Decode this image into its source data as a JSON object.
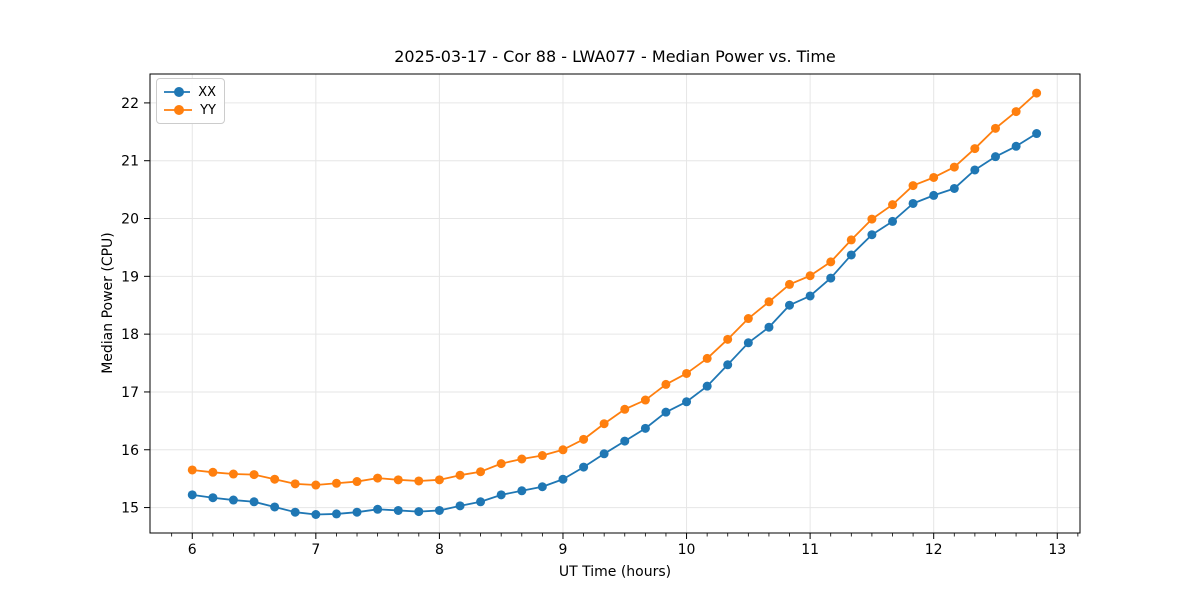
{
  "chart_data": {
    "type": "line",
    "title": "2025-03-17 - Cor 88 - LWA077 - Median Power vs. Time",
    "xlabel": "UT Time (hours)",
    "ylabel": "Median Power (CPU)",
    "xlim": [
      5.658,
      13.184
    ],
    "ylim": [
      14.56,
      22.5
    ],
    "xticks": [
      6,
      7,
      8,
      9,
      10,
      11,
      12,
      13
    ],
    "yticks": [
      15,
      16,
      17,
      18,
      19,
      20,
      21,
      22
    ],
    "minor_xtick_interval": 0.1667,
    "grid": true,
    "grid_color": "#e6e6e6",
    "legend_position": "upper-left",
    "x": [
      6.0,
      6.167,
      6.333,
      6.5,
      6.667,
      6.833,
      7.0,
      7.167,
      7.333,
      7.5,
      7.667,
      7.833,
      8.0,
      8.167,
      8.333,
      8.5,
      8.667,
      8.833,
      9.0,
      9.167,
      9.333,
      9.5,
      9.667,
      9.833,
      10.0,
      10.167,
      10.333,
      10.5,
      10.667,
      10.833,
      11.0,
      11.167,
      11.333,
      11.5,
      11.667,
      11.833,
      12.0,
      12.167,
      12.333,
      12.5,
      12.667,
      12.833
    ],
    "series": [
      {
        "name": "XX",
        "color": "#1f77b4",
        "marker": "circle",
        "values": [
          15.22,
          15.17,
          15.13,
          15.1,
          15.01,
          14.92,
          14.88,
          14.89,
          14.92,
          14.97,
          14.95,
          14.93,
          14.95,
          15.03,
          15.1,
          15.22,
          15.29,
          15.36,
          15.49,
          15.7,
          15.93,
          16.15,
          16.37,
          16.65,
          16.83,
          17.1,
          17.47,
          17.85,
          18.12,
          18.5,
          18.66,
          18.97,
          19.37,
          19.72,
          19.95,
          20.26,
          20.4,
          20.52,
          20.84,
          21.07,
          21.25,
          21.47
        ]
      },
      {
        "name": "YY",
        "color": "#ff7f0e",
        "marker": "circle",
        "values": [
          15.65,
          15.61,
          15.58,
          15.57,
          15.49,
          15.41,
          15.39,
          15.42,
          15.45,
          15.51,
          15.48,
          15.46,
          15.48,
          15.56,
          15.62,
          15.76,
          15.84,
          15.9,
          16.0,
          16.18,
          16.45,
          16.7,
          16.86,
          17.13,
          17.32,
          17.58,
          17.91,
          18.27,
          18.56,
          18.86,
          19.01,
          19.25,
          19.63,
          19.99,
          20.24,
          20.57,
          20.71,
          20.89,
          21.21,
          21.56,
          21.85,
          22.17
        ]
      }
    ]
  }
}
